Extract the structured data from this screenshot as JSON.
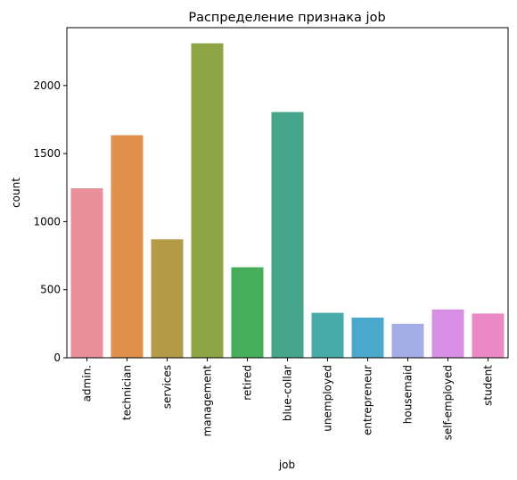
{
  "chart_data": {
    "type": "bar",
    "title": "Распределение признака job",
    "xlabel": "job",
    "ylabel": "count",
    "categories": [
      "admin.",
      "technician",
      "services",
      "management",
      "retired",
      "blue-collar",
      "unemployed",
      "entrepreneur",
      "housemaid",
      "self-employed",
      "student"
    ],
    "values": [
      1245,
      1635,
      870,
      2310,
      665,
      1805,
      330,
      295,
      250,
      355,
      325
    ],
    "colors": [
      "#e8909b",
      "#e08f4c",
      "#b49b48",
      "#8ea445",
      "#46ae5b",
      "#46a58a",
      "#48aba9",
      "#4aa8cc",
      "#a5ade6",
      "#d68fe4",
      "#e98ac5"
    ],
    "yticks": [
      0,
      500,
      1000,
      1500,
      2000
    ],
    "ylim": [
      0,
      2425
    ],
    "grid": false,
    "legend": "none"
  }
}
